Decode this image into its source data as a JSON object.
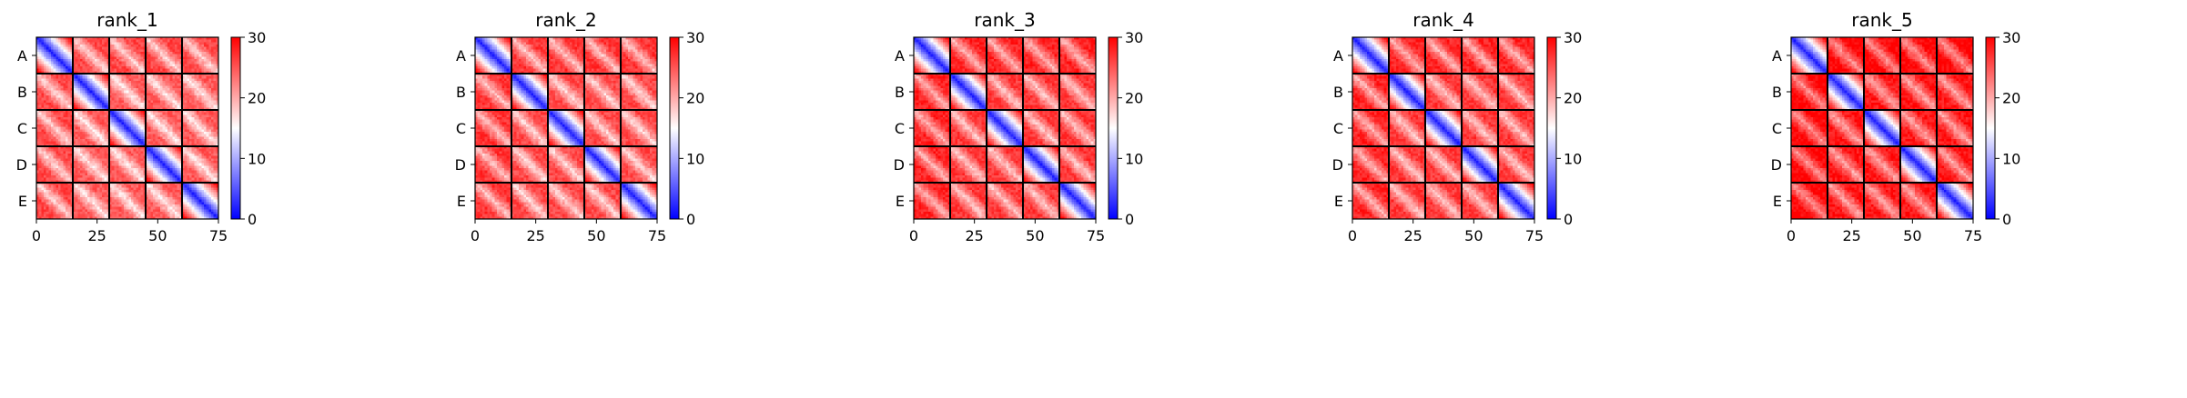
{
  "chart_data": [
    {
      "type": "heatmap",
      "title": "rank_1",
      "n": 75,
      "block_size": 15,
      "block_labels": [
        "A",
        "B",
        "C",
        "D",
        "E"
      ],
      "x_ticks": [
        0,
        25,
        50,
        75
      ],
      "colorbar": {
        "min": 0,
        "max": 30,
        "ticks": [
          0,
          10,
          20,
          30
        ],
        "colormap": "bwr",
        "colors": [
          "#0000ff",
          "#ffffff",
          "#ff0000"
        ]
      },
      "base_offdiag": 23
    },
    {
      "type": "heatmap",
      "title": "rank_2",
      "n": 75,
      "block_size": 15,
      "block_labels": [
        "A",
        "B",
        "C",
        "D",
        "E"
      ],
      "x_ticks": [
        0,
        25,
        50,
        75
      ],
      "colorbar": {
        "min": 0,
        "max": 30,
        "ticks": [
          0,
          10,
          20,
          30
        ],
        "colormap": "bwr",
        "colors": [
          "#0000ff",
          "#ffffff",
          "#ff0000"
        ]
      },
      "base_offdiag": 24
    },
    {
      "type": "heatmap",
      "title": "rank_3",
      "n": 75,
      "block_size": 15,
      "block_labels": [
        "A",
        "B",
        "C",
        "D",
        "E"
      ],
      "x_ticks": [
        0,
        25,
        50,
        75
      ],
      "colorbar": {
        "min": 0,
        "max": 30,
        "ticks": [
          0,
          10,
          20,
          30
        ],
        "colormap": "bwr",
        "colors": [
          "#0000ff",
          "#ffffff",
          "#ff0000"
        ]
      },
      "base_offdiag": 25
    },
    {
      "type": "heatmap",
      "title": "rank_4",
      "n": 75,
      "block_size": 15,
      "block_labels": [
        "A",
        "B",
        "C",
        "D",
        "E"
      ],
      "x_ticks": [
        0,
        25,
        50,
        75
      ],
      "colorbar": {
        "min": 0,
        "max": 30,
        "ticks": [
          0,
          10,
          20,
          30
        ],
        "colormap": "bwr",
        "colors": [
          "#0000ff",
          "#ffffff",
          "#ff0000"
        ]
      },
      "base_offdiag": 25
    },
    {
      "type": "heatmap",
      "title": "rank_5",
      "n": 75,
      "block_size": 15,
      "block_labels": [
        "A",
        "B",
        "C",
        "D",
        "E"
      ],
      "x_ticks": [
        0,
        25,
        50,
        75
      ],
      "colorbar": {
        "min": 0,
        "max": 30,
        "ticks": [
          0,
          10,
          20,
          30
        ],
        "colormap": "bwr",
        "colors": [
          "#0000ff",
          "#ffffff",
          "#ff0000"
        ]
      },
      "base_offdiag": 27
    }
  ]
}
